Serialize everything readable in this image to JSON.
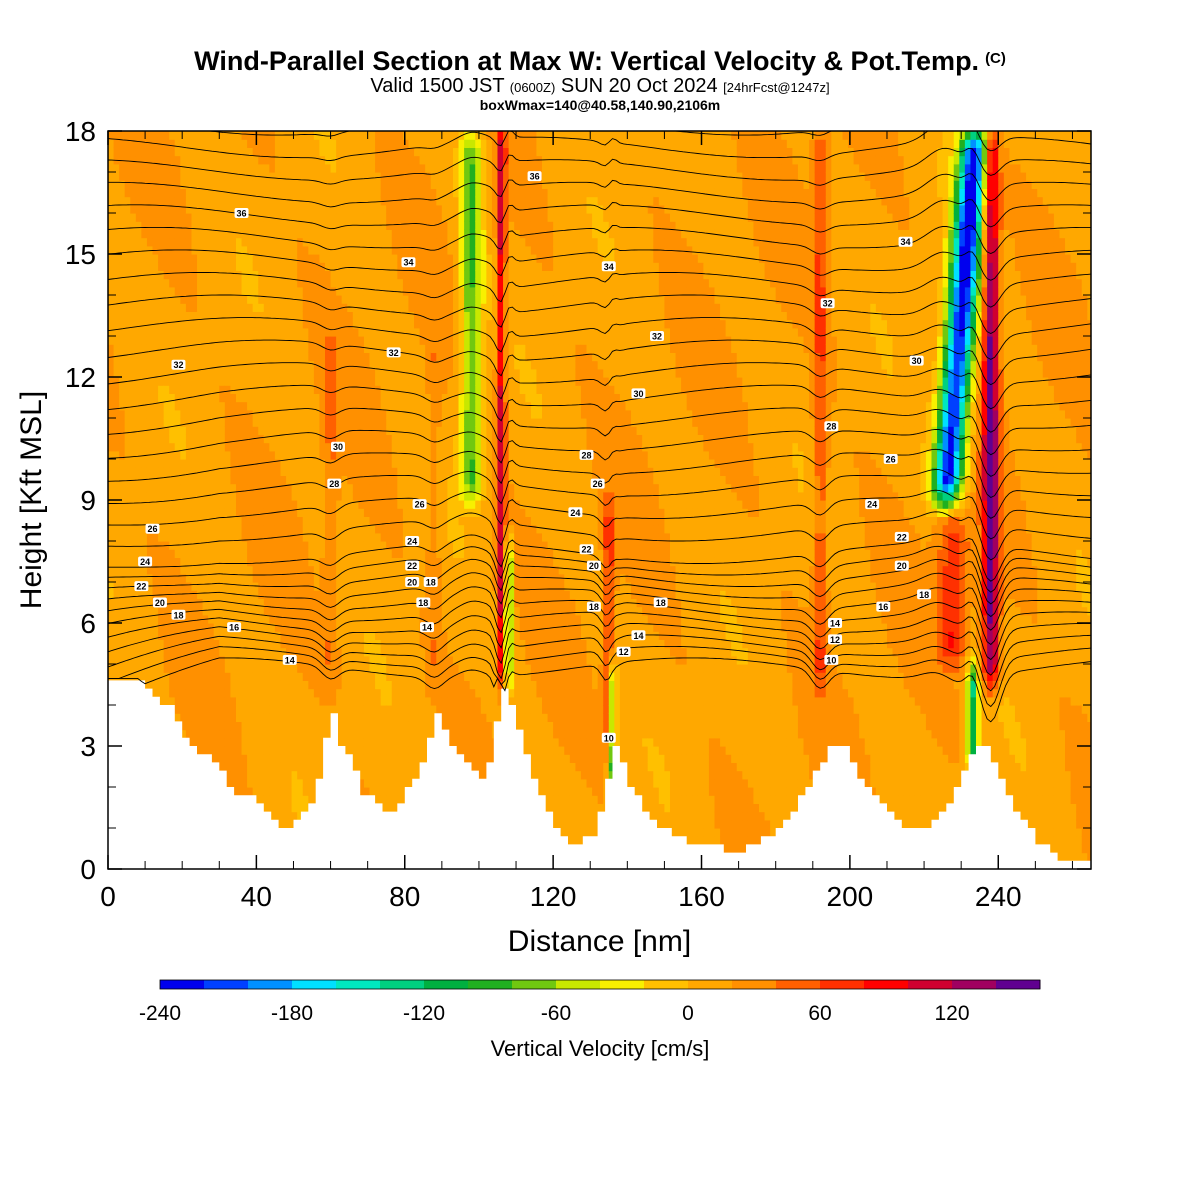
{
  "header": {
    "title": "Wind-Parallel Section at Max W: Vertical Velocity & Pot.Temp.",
    "copyright": "(C)",
    "valid_prefix": "Valid 1500 JST",
    "valid_utc": "(0600Z)",
    "valid_suffix": "SUN 20 Oct 2024",
    "forecast": "[24hrFcst@1247z]",
    "box_info": "boxWmax=140@40.58,140.90,2106m"
  },
  "colorbar": {
    "label": "Vertical Velocity [cm/s]",
    "tick_labels": [
      "-240",
      "-180",
      "-120",
      "-60",
      "0",
      "60",
      "120"
    ],
    "tick_values": [
      -240,
      -180,
      -120,
      -60,
      0,
      60,
      120
    ],
    "min": -240,
    "max": 160,
    "colors": [
      "#0000ee",
      "#0040ff",
      "#0090ff",
      "#00e0ff",
      "#00e8c0",
      "#00d080",
      "#00b040",
      "#20b020",
      "#70c810",
      "#c8e800",
      "#f8f000",
      "#ffc000",
      "#ffa800",
      "#ff9000",
      "#ff6000",
      "#ff3000",
      "#ff0000",
      "#d00030",
      "#a00060",
      "#600090"
    ]
  },
  "chart_data": {
    "type": "heatmap",
    "title": "Wind-Parallel Section at Max W: Vertical Velocity & Pot.Temp.",
    "xlabel": "Distance [nm]",
    "ylabel": "Height [Kft MSL]",
    "xlim": [
      0,
      265
    ],
    "ylim": [
      0,
      18
    ],
    "x_ticks": [
      0,
      40,
      80,
      120,
      160,
      200,
      240
    ],
    "y_ticks": [
      0,
      3,
      6,
      9,
      12,
      15,
      18
    ],
    "field": "Vertical Velocity [cm/s]",
    "contours": "Potential temperature (C)",
    "background_value": 15,
    "terrain": [
      [
        0,
        4.5
      ],
      [
        8,
        4.5
      ],
      [
        12,
        4.2
      ],
      [
        16,
        3.9
      ],
      [
        20,
        3.2
      ],
      [
        25,
        2.8
      ],
      [
        30,
        2.4
      ],
      [
        33,
        1.9
      ],
      [
        36,
        1.8
      ],
      [
        40,
        1.6
      ],
      [
        45,
        1.1
      ],
      [
        48,
        1.0
      ],
      [
        52,
        1.3
      ],
      [
        55,
        1.6
      ],
      [
        58,
        3.2
      ],
      [
        60,
        3.8
      ],
      [
        62,
        3.0
      ],
      [
        65,
        2.6
      ],
      [
        68,
        1.8
      ],
      [
        72,
        1.6
      ],
      [
        75,
        1.4
      ],
      [
        78,
        1.6
      ],
      [
        82,
        2.2
      ],
      [
        85,
        2.8
      ],
      [
        87,
        3.8
      ],
      [
        89,
        3.6
      ],
      [
        92,
        3.0
      ],
      [
        96,
        2.6
      ],
      [
        100,
        2.2
      ],
      [
        103,
        2.8
      ],
      [
        105,
        4.5
      ],
      [
        107,
        4.2
      ],
      [
        110,
        3.4
      ],
      [
        115,
        2.0
      ],
      [
        120,
        1.0
      ],
      [
        125,
        0.6
      ],
      [
        130,
        0.8
      ],
      [
        133,
        1.6
      ],
      [
        135,
        3.0
      ],
      [
        137,
        3.0
      ],
      [
        140,
        2.0
      ],
      [
        145,
        1.3
      ],
      [
        150,
        0.9
      ],
      [
        155,
        0.7
      ],
      [
        160,
        0.6
      ],
      [
        165,
        0.5
      ],
      [
        170,
        0.4
      ],
      [
        175,
        0.7
      ],
      [
        180,
        0.9
      ],
      [
        185,
        1.6
      ],
      [
        190,
        2.4
      ],
      [
        195,
        3.1
      ],
      [
        198,
        3.0
      ],
      [
        202,
        2.3
      ],
      [
        208,
        1.6
      ],
      [
        212,
        1.1
      ],
      [
        218,
        0.9
      ],
      [
        222,
        1.2
      ],
      [
        226,
        1.5
      ],
      [
        230,
        2.4
      ],
      [
        233,
        3.0
      ],
      [
        236,
        3.0
      ],
      [
        240,
        2.2
      ],
      [
        245,
        1.3
      ],
      [
        250,
        0.7
      ],
      [
        255,
        0.3
      ],
      [
        265,
        0.3
      ]
    ],
    "updrafts": [
      {
        "x": 60,
        "z": [
          4.5,
          13
        ],
        "w": 40,
        "width": 2.0
      },
      {
        "x": 88,
        "z": [
          4.5,
          13
        ],
        "w": 35,
        "width": 2.0
      },
      {
        "x": 106,
        "z": [
          4.5,
          18
        ],
        "w": 110,
        "width": 1.2
      },
      {
        "x": 135,
        "z": [
          3.0,
          9
        ],
        "w": 70,
        "width": 1.5
      },
      {
        "x": 192,
        "z": [
          4.5,
          18
        ],
        "w": 60,
        "width": 2.0
      },
      {
        "x": 238,
        "z": [
          4.5,
          18
        ],
        "w": 150,
        "width": 2.2
      },
      {
        "x": 228,
        "z": [
          5.0,
          8.5
        ],
        "w": 80,
        "width": 4.0
      }
    ],
    "downdrafts": [
      {
        "x": 98,
        "z": [
          9,
          18
        ],
        "w": -80,
        "width": 3.0
      },
      {
        "x": 108,
        "z": [
          4.5,
          8
        ],
        "w": -100,
        "width": 1.0
      },
      {
        "x": 136,
        "z": [
          1.5,
          5
        ],
        "w": -90,
        "width": 1.0
      },
      {
        "x": 226,
        "z": [
          9,
          18
        ],
        "w": -230,
        "width": 4.0
      },
      {
        "x": 233,
        "z": [
          2.5,
          5
        ],
        "w": -120,
        "width": 1.5
      }
    ],
    "contour_labels": [
      {
        "x": 36,
        "z": 16.0,
        "text": "36"
      },
      {
        "x": 115,
        "z": 16.9,
        "text": "36"
      },
      {
        "x": 81,
        "z": 14.8,
        "text": "34"
      },
      {
        "x": 135,
        "z": 14.7,
        "text": "34"
      },
      {
        "x": 215,
        "z": 15.3,
        "text": "34"
      },
      {
        "x": 194,
        "z": 13.8,
        "text": "32"
      },
      {
        "x": 19,
        "z": 12.3,
        "text": "32"
      },
      {
        "x": 77,
        "z": 12.6,
        "text": "32"
      },
      {
        "x": 148,
        "z": 13.0,
        "text": "32"
      },
      {
        "x": 218,
        "z": 12.4,
        "text": "30"
      },
      {
        "x": 143,
        "z": 11.6,
        "text": "30"
      },
      {
        "x": 195,
        "z": 10.8,
        "text": "28"
      },
      {
        "x": 62,
        "z": 10.3,
        "text": "30"
      },
      {
        "x": 129,
        "z": 10.1,
        "text": "28"
      },
      {
        "x": 211,
        "z": 10.0,
        "text": "26"
      },
      {
        "x": 61,
        "z": 9.4,
        "text": "28"
      },
      {
        "x": 132,
        "z": 9.4,
        "text": "26"
      },
      {
        "x": 84,
        "z": 8.9,
        "text": "26"
      },
      {
        "x": 206,
        "z": 8.9,
        "text": "24"
      },
      {
        "x": 126,
        "z": 8.7,
        "text": "24"
      },
      {
        "x": 12,
        "z": 8.3,
        "text": "26"
      },
      {
        "x": 214,
        "z": 8.1,
        "text": "22"
      },
      {
        "x": 82,
        "z": 8.0,
        "text": "24"
      },
      {
        "x": 129,
        "z": 7.8,
        "text": "22"
      },
      {
        "x": 10,
        "z": 7.5,
        "text": "24"
      },
      {
        "x": 82,
        "z": 7.4,
        "text": "22"
      },
      {
        "x": 214,
        "z": 7.4,
        "text": "20"
      },
      {
        "x": 131,
        "z": 7.4,
        "text": "20"
      },
      {
        "x": 9,
        "z": 6.9,
        "text": "22"
      },
      {
        "x": 82,
        "z": 7.0,
        "text": "20"
      },
      {
        "x": 87,
        "z": 7.0,
        "text": "18"
      },
      {
        "x": 220,
        "z": 6.7,
        "text": "18"
      },
      {
        "x": 14,
        "z": 6.5,
        "text": "20"
      },
      {
        "x": 149,
        "z": 6.5,
        "text": "18"
      },
      {
        "x": 85,
        "z": 6.5,
        "text": "18"
      },
      {
        "x": 131,
        "z": 6.4,
        "text": "18"
      },
      {
        "x": 19,
        "z": 6.2,
        "text": "18"
      },
      {
        "x": 209,
        "z": 6.4,
        "text": "16"
      },
      {
        "x": 196,
        "z": 6.0,
        "text": "14"
      },
      {
        "x": 86,
        "z": 5.9,
        "text": "14"
      },
      {
        "x": 34,
        "z": 5.9,
        "text": "16"
      },
      {
        "x": 143,
        "z": 5.7,
        "text": "14"
      },
      {
        "x": 196,
        "z": 5.6,
        "text": "12"
      },
      {
        "x": 49,
        "z": 5.1,
        "text": "14"
      },
      {
        "x": 139,
        "z": 5.3,
        "text": "12"
      },
      {
        "x": 195,
        "z": 5.1,
        "text": "10"
      },
      {
        "x": 135,
        "z": 3.2,
        "text": "10"
      }
    ]
  }
}
